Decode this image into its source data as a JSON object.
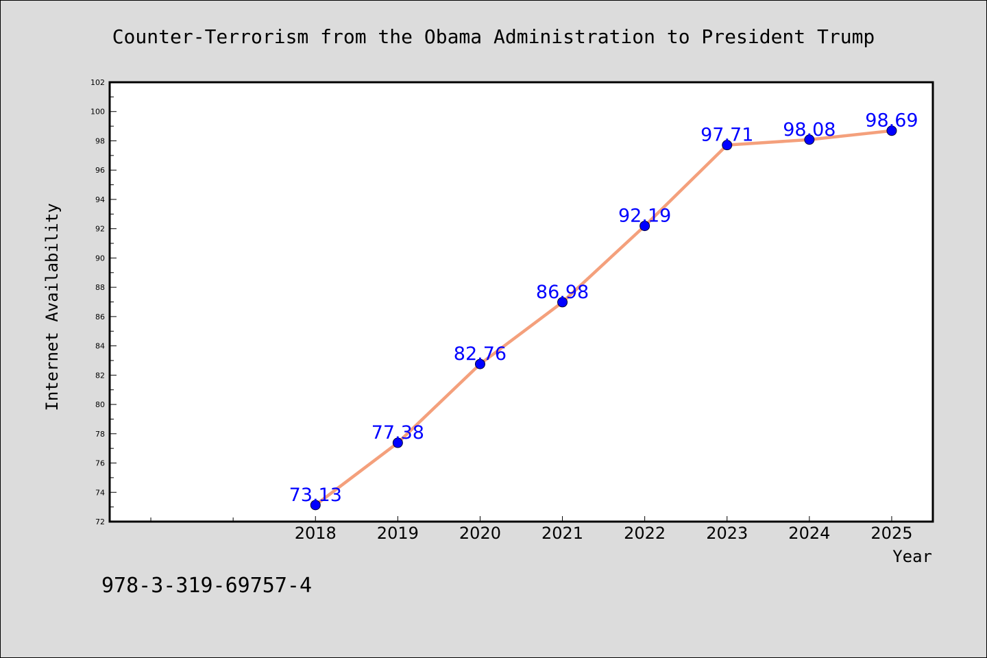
{
  "chart_data": {
    "type": "line",
    "title": "Counter-Terrorism from the Obama Administration to President Trump",
    "xlabel": "Year",
    "ylabel": "Internet Availability",
    "x": [
      "2018",
      "2019",
      "2020",
      "2021",
      "2022",
      "2023",
      "2024",
      "2025"
    ],
    "series": [
      {
        "values": [
          73.13,
          77.38,
          82.76,
          86.98,
          92.19,
          97.71,
          98.08,
          98.69
        ],
        "labels": [
          "73.13",
          "77.38",
          "82.76",
          "86.98",
          "92.19",
          "97.71",
          "98.08",
          "98.69"
        ]
      }
    ],
    "ylim": [
      72,
      102
    ],
    "yticks": [
      "72",
      "74",
      "76",
      "78",
      "80",
      "82",
      "84",
      "86",
      "88",
      "90",
      "92",
      "94",
      "96",
      "98",
      "100",
      "102"
    ],
    "xlim": [
      2015.5,
      2025.5
    ],
    "grid": false,
    "line_color": "#f4a07c",
    "marker_color": "#0000ff",
    "label_color": "#0000ff",
    "background": "#dcdcdc",
    "plot_background": "#ffffff"
  },
  "footer_text": "978-3-319-69757-4"
}
